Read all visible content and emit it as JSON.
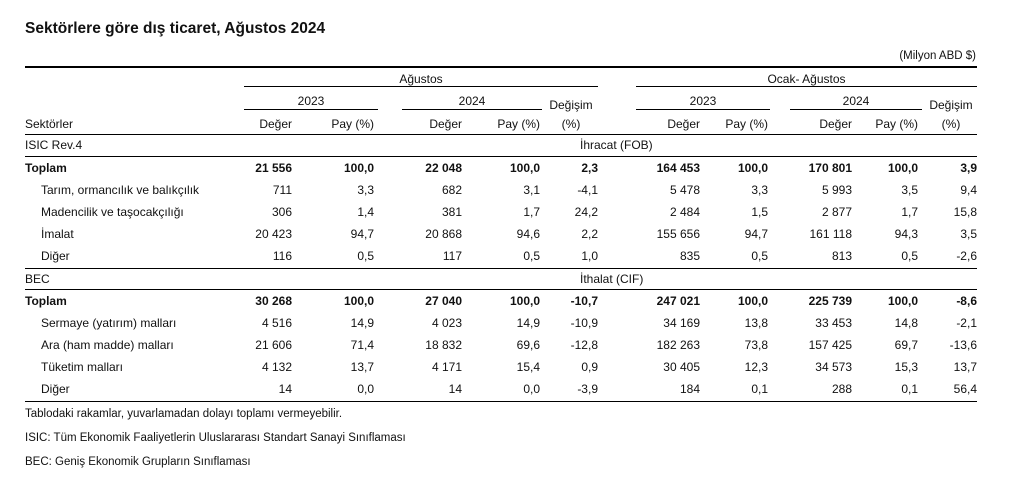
{
  "title": "Sektörlere göre dış ticaret, Ağustos 2024",
  "unit": "(Milyon ABD $)",
  "header": {
    "period1": "Ağustos",
    "period2": "Ocak- Ağustos",
    "year1": "2023",
    "year2": "2024",
    "change": "Değişim",
    "change_unit": "(%)",
    "value": "Değer",
    "share": "Pay (%)",
    "sectors": "Sektörler"
  },
  "sections": [
    {
      "label": "ISIC Rev.4",
      "title": "İhracat (FOB)",
      "rows": [
        {
          "name": "Toplam",
          "bold": true,
          "cells": [
            "21 556",
            "100,0",
            "22 048",
            "100,0",
            "2,3",
            "164 453",
            "100,0",
            "170 801",
            "100,0",
            "3,9"
          ]
        },
        {
          "name": "Tarım, ormancılık ve balıkçılık",
          "cells": [
            "711",
            "3,3",
            "682",
            "3,1",
            "-4,1",
            "5 478",
            "3,3",
            "5 993",
            "3,5",
            "9,4"
          ]
        },
        {
          "name": "Madencilik ve taşocakçılığı",
          "cells": [
            "306",
            "1,4",
            "381",
            "1,7",
            "24,2",
            "2 484",
            "1,5",
            "2 877",
            "1,7",
            "15,8"
          ]
        },
        {
          "name": "İmalat",
          "cells": [
            "20 423",
            "94,7",
            "20 868",
            "94,6",
            "2,2",
            "155 656",
            "94,7",
            "161 118",
            "94,3",
            "3,5"
          ]
        },
        {
          "name": "Diğer",
          "cells": [
            "116",
            "0,5",
            "117",
            "0,5",
            "1,0",
            "835",
            "0,5",
            "813",
            "0,5",
            "-2,6"
          ]
        }
      ]
    },
    {
      "label": "BEC",
      "title": "İthalat (CIF)",
      "rows": [
        {
          "name": "Toplam",
          "bold": true,
          "cells": [
            "30 268",
            "100,0",
            "27 040",
            "100,0",
            "-10,7",
            "247 021",
            "100,0",
            "225 739",
            "100,0",
            "-8,6"
          ]
        },
        {
          "name": "Sermaye (yatırım) malları",
          "cells": [
            "4 516",
            "14,9",
            "4 023",
            "14,9",
            "-10,9",
            "34 169",
            "13,8",
            "33 453",
            "14,8",
            "-2,1"
          ]
        },
        {
          "name": "Ara (ham madde) malları",
          "cells": [
            "21 606",
            "71,4",
            "18 832",
            "69,6",
            "-12,8",
            "182 263",
            "73,8",
            "157 425",
            "69,7",
            "-13,6"
          ]
        },
        {
          "name": "Tüketim malları",
          "cells": [
            "4 132",
            "13,7",
            "4 171",
            "15,4",
            "0,9",
            "30 405",
            "12,3",
            "34 573",
            "15,3",
            "13,7"
          ]
        },
        {
          "name": "Diğer",
          "cells": [
            "14",
            "0,0",
            "14",
            "0,0",
            "-3,9",
            "184",
            "0,1",
            "288",
            "0,1",
            "56,4"
          ]
        }
      ]
    }
  ],
  "notes": [
    "Tablodaki rakamlar, yuvarlamadan dolayı toplamı vermeyebilir.",
    "ISIC: Tüm Ekonomik Faaliyetlerin Uluslararası Standart Sanayi Sınıflaması",
    "BEC: Geniş Ekonomik Grupların Sınıflaması"
  ]
}
